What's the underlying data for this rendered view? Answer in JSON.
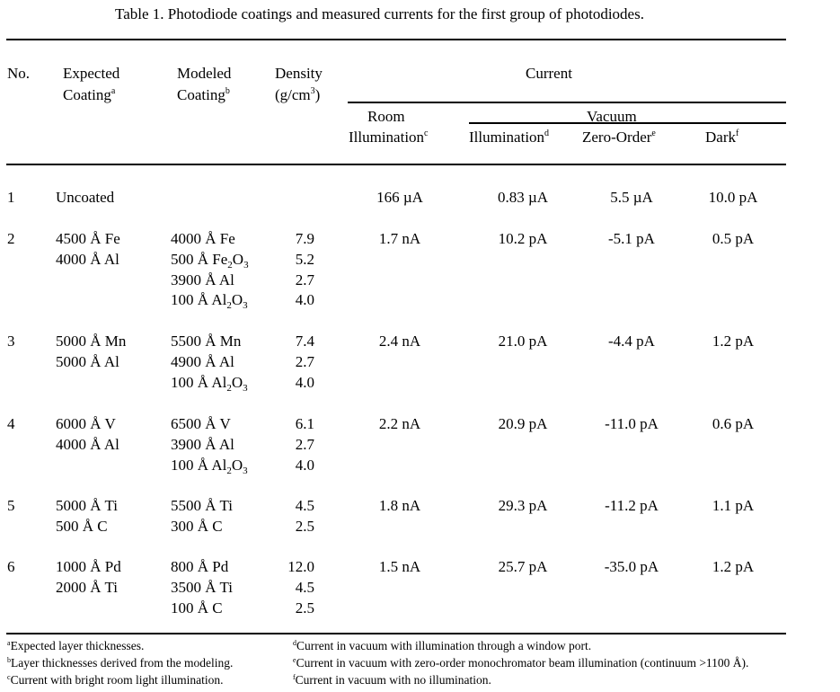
{
  "title": "Table 1.  Photodiode coatings and measured currents for the first group of photodiodes.",
  "headers": {
    "no": "No.",
    "expected_1": "Expected",
    "expected_2": "Coating",
    "expected_sup": "a",
    "modeled_1": "Modeled",
    "modeled_2": "Coating",
    "modeled_sup": "b",
    "density_1": "Density",
    "density_2_pre": "(g/cm",
    "density_2_sup": "3",
    "density_2_post": ")",
    "current": "Current",
    "room_1": "Room",
    "room_2": "Illumination",
    "room_sup": "c",
    "vacuum": "Vacuum",
    "vac_illum": "Illumination",
    "vac_illum_sup": "d",
    "zero_order": "Zero-Order",
    "zero_order_sup": "e",
    "dark": "Dark",
    "dark_sup": "f"
  },
  "rows": [
    {
      "no": "1",
      "expected": [
        "Uncoated"
      ],
      "modeled": [],
      "density": [],
      "room": "166 µA",
      "vac_illum": "0.83 µA",
      "zero_order": "5.5 µA",
      "dark": "10.0 pA"
    },
    {
      "no": "2",
      "expected": [
        "4500 Å Fe",
        "4000 Å Al"
      ],
      "modeled": [
        {
          "pre": "4000 Å Fe"
        },
        {
          "pre": "500 Å Fe",
          "sub1": "2",
          "mid": "O",
          "sub2": "3"
        },
        {
          "pre": "3900 Å Al"
        },
        {
          "pre": "100 Å Al",
          "sub1": "2",
          "mid": "O",
          "sub2": "3"
        }
      ],
      "density": [
        "7.9",
        "5.2",
        "2.7",
        "4.0"
      ],
      "room": "1.7 nA",
      "vac_illum": "10.2 pA",
      "zero_order": "-5.1 pA",
      "dark": "0.5 pA"
    },
    {
      "no": "3",
      "expected": [
        "5000 Å Mn",
        "5000 Å Al"
      ],
      "modeled": [
        {
          "pre": "5500 Å Mn"
        },
        {
          "pre": "4900 Å Al"
        },
        {
          "pre": "100 Å Al",
          "sub1": "2",
          "mid": "O",
          "sub2": "3"
        }
      ],
      "density": [
        "7.4",
        "2.7",
        "4.0"
      ],
      "room": "2.4 nA",
      "vac_illum": "21.0 pA",
      "zero_order": "-4.4 pA",
      "dark": "1.2 pA"
    },
    {
      "no": "4",
      "expected": [
        "6000 Å V",
        "4000 Å Al"
      ],
      "modeled": [
        {
          "pre": "6500 Å V"
        },
        {
          "pre": "3900 Å Al"
        },
        {
          "pre": "100 Å Al",
          "sub1": "2",
          "mid": "O",
          "sub2": "3"
        }
      ],
      "density": [
        "6.1",
        "2.7",
        "4.0"
      ],
      "room": "2.2 nA",
      "vac_illum": "20.9 pA",
      "zero_order": "-11.0 pA",
      "dark": "0.6 pA"
    },
    {
      "no": "5",
      "expected": [
        "5000 Å Ti",
        "500 Å C"
      ],
      "modeled": [
        {
          "pre": "5500 Å Ti"
        },
        {
          "pre": "300 Å C"
        }
      ],
      "density": [
        "4.5",
        "2.5"
      ],
      "room": "1.8 nA",
      "vac_illum": "29.3 pA",
      "zero_order": "-11.2 pA",
      "dark": "1.1 pA"
    },
    {
      "no": "6",
      "expected": [
        "1000 Å Pd",
        "2000 Å Ti"
      ],
      "modeled": [
        {
          "pre": "800 Å Pd"
        },
        {
          "pre": "3500 Å Ti"
        },
        {
          "pre": "100 Å C"
        }
      ],
      "density": [
        "12.0",
        "4.5",
        "2.5"
      ],
      "room": "1.5 nA",
      "vac_illum": "25.7 pA",
      "zero_order": "-35.0 pA",
      "dark": "1.2 pA"
    }
  ],
  "footnotes": {
    "a": {
      "mark": "a",
      "text": "Expected layer thicknesses."
    },
    "b": {
      "mark": "b",
      "text": "Layer thicknesses derived from the modeling."
    },
    "c": {
      "mark": "c",
      "text": "Current with bright room light illumination."
    },
    "d": {
      "mark": "d",
      "text": "Current in vacuum with illumination through a window port."
    },
    "e": {
      "mark": "e",
      "text": "Current in vacuum with zero-order monochromator beam illumination (continuum >1100 Å)."
    },
    "f": {
      "mark": "f",
      "text": "Current in vacuum with no illumination."
    }
  }
}
